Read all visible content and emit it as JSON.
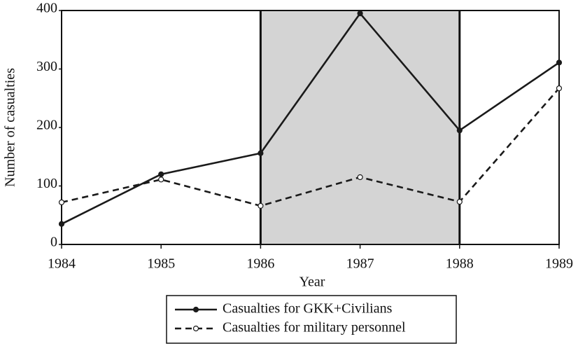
{
  "chart_data": {
    "type": "line",
    "xlabel": "Year",
    "ylabel": "Number of casualties",
    "x": [
      1984,
      1985,
      1986,
      1987,
      1988,
      1989
    ],
    "xlim": [
      1984,
      1989
    ],
    "xticks": [
      1984,
      1985,
      1986,
      1987,
      1988,
      1989
    ],
    "ylim": [
      0,
      400
    ],
    "yticks": [
      0,
      100,
      200,
      300,
      400
    ],
    "shade": [
      1986,
      1988
    ],
    "shade_color": "#d4d4d4",
    "series": [
      {
        "name": "Casualties for GKK+Civilians",
        "color": "#1a1a1a",
        "dash": false,
        "marker_fill": "#1a1a1a",
        "values": [
          35,
          120,
          156,
          395,
          195,
          311
        ]
      },
      {
        "name": "Casualties for military personnel",
        "color": "#1a1a1a",
        "dash": true,
        "marker_fill": "#ffffff",
        "values": [
          72,
          111,
          66,
          115,
          73,
          267
        ]
      }
    ]
  }
}
